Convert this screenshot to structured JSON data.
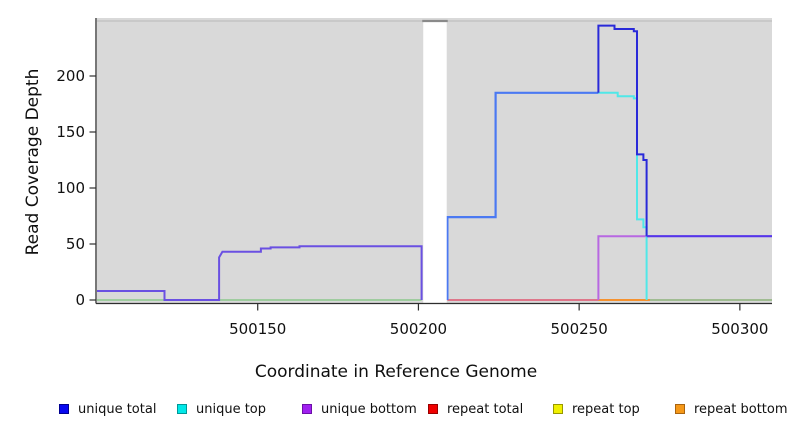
{
  "figure": {
    "background": "#FFFFFF",
    "plot_background": "#D9D9D9",
    "axis_color": "#2E2E2E",
    "tick_label_color": "#111111"
  },
  "chart_data": {
    "type": "line",
    "title": "",
    "xlabel": "Coordinate in Reference Genome",
    "ylabel": "Read Coverage Depth",
    "xlim": [
      500100,
      500310
    ],
    "ylim": [
      0,
      250
    ],
    "x_ticks": [
      500150,
      500200,
      500250,
      500300
    ],
    "y_ticks": [
      0,
      50,
      100,
      150,
      200
    ],
    "grid": false,
    "legend_position": "bottom",
    "masked_region": {
      "x_start": 500201.5,
      "x_end": 500208.8,
      "fill": "#FFFFFF",
      "cap_color": "#8A8A8A",
      "top_edge_color": "#C4C4C4"
    },
    "series": [
      {
        "name": "unique total",
        "color": "#0808F0",
        "points": [
          [
            500100,
            8
          ],
          [
            500121,
            0
          ],
          [
            500138,
            43
          ],
          [
            500151,
            46
          ],
          [
            500154,
            47
          ],
          [
            500163,
            48
          ],
          [
            500201,
            48
          ],
          [
            500209,
            74
          ],
          [
            500224,
            185
          ],
          [
            500256,
            245
          ],
          [
            500261,
            242
          ],
          [
            500268,
            130
          ],
          [
            500270,
            125
          ],
          [
            500271,
            57
          ],
          [
            500310,
            57
          ]
        ]
      },
      {
        "name": "unique top",
        "color": "#00E8E8",
        "points": [
          [
            500100,
            0
          ],
          [
            500224,
            185
          ],
          [
            500256,
            185
          ],
          [
            500262,
            182
          ],
          [
            500268,
            72
          ],
          [
            500270,
            65
          ],
          [
            500271,
            0
          ],
          [
            500310,
            0
          ]
        ]
      },
      {
        "name": "unique bottom",
        "color": "#A020F0",
        "points": [
          [
            500100,
            8
          ],
          [
            500121,
            0
          ],
          [
            500138,
            43
          ],
          [
            500163,
            48
          ],
          [
            500201,
            0
          ],
          [
            500256,
            57
          ],
          [
            500310,
            57
          ]
        ]
      },
      {
        "name": "repeat total",
        "color": "#F00000",
        "points": [
          [
            500100,
            0
          ],
          [
            500310,
            0
          ]
        ]
      },
      {
        "name": "repeat top",
        "color": "#F0F000",
        "points": [
          [
            500100,
            0
          ],
          [
            500310,
            0
          ]
        ]
      },
      {
        "name": "repeat bottom",
        "color": "#F59818",
        "points": [
          [
            500100,
            0
          ],
          [
            500310,
            0
          ]
        ]
      }
    ],
    "render_segments": [
      {
        "id": "zero-line-green-left",
        "color": "#8CC88C",
        "width": 1.6,
        "points": [
          [
            500100,
            0
          ],
          [
            500201,
            0
          ]
        ]
      },
      {
        "id": "zero-line-red-right",
        "color": "#E05570",
        "width": 1.6,
        "points": [
          [
            500209,
            0
          ],
          [
            500310,
            0
          ]
        ]
      },
      {
        "id": "zero-line-orange",
        "color": "#F5922F",
        "width": 2,
        "points": [
          [
            500256,
            0
          ],
          [
            500272,
            0
          ]
        ]
      },
      {
        "id": "zero-line-green-right",
        "color": "#8CC88C",
        "width": 1.6,
        "points": [
          [
            500272,
            0
          ],
          [
            500310,
            0
          ]
        ]
      },
      {
        "id": "unique-left-steps",
        "color": "#6A50E2",
        "width": 2,
        "points": [
          [
            500100,
            8
          ],
          [
            500121,
            8
          ],
          [
            500121,
            0
          ],
          [
            500138,
            0
          ],
          [
            500138,
            38
          ],
          [
            500139,
            43
          ],
          [
            500151,
            43
          ],
          [
            500151,
            46
          ],
          [
            500154,
            46
          ],
          [
            500154,
            47
          ],
          [
            500163,
            47
          ],
          [
            500163,
            48
          ],
          [
            500201,
            48
          ],
          [
            500201,
            0
          ]
        ]
      },
      {
        "id": "total-bright-blue",
        "color": "#4B79F2",
        "width": 2.2,
        "points": [
          [
            500209,
            0
          ],
          [
            500209,
            74
          ],
          [
            500224,
            74
          ],
          [
            500224,
            185
          ],
          [
            500256,
            185
          ]
        ]
      },
      {
        "id": "bottom-purple-57",
        "color": "#B868E2",
        "width": 2,
        "points": [
          [
            500256,
            0
          ],
          [
            500256,
            57
          ],
          [
            500272,
            57
          ]
        ]
      },
      {
        "id": "top-cyan",
        "color": "#50E8E8",
        "width": 2,
        "points": [
          [
            500256,
            185
          ],
          [
            500262,
            185
          ],
          [
            500262,
            182
          ],
          [
            500267,
            182
          ],
          [
            500267,
            180
          ],
          [
            500268,
            180
          ],
          [
            500268,
            72
          ],
          [
            500270,
            72
          ],
          [
            500270,
            65
          ],
          [
            500271,
            65
          ],
          [
            500271,
            0
          ]
        ]
      },
      {
        "id": "total-dark-blue",
        "color": "#2A2AD9",
        "width": 2,
        "points": [
          [
            500256,
            185
          ],
          [
            500256,
            245
          ],
          [
            500261,
            245
          ],
          [
            500261,
            242
          ],
          [
            500267,
            242
          ],
          [
            500267,
            240
          ],
          [
            500268,
            240
          ],
          [
            500268,
            130
          ],
          [
            500270,
            130
          ],
          [
            500270,
            125
          ],
          [
            500271,
            125
          ],
          [
            500271,
            57
          ]
        ]
      },
      {
        "id": "total-over-bottom-tail",
        "color": "#5635EA",
        "width": 2.2,
        "points": [
          [
            500271,
            57
          ],
          [
            500310,
            57
          ]
        ]
      }
    ]
  },
  "legend": {
    "item_x": [
      59,
      177,
      302,
      428,
      553,
      675
    ],
    "items": [
      {
        "label": "unique total",
        "fill": "#0808F0",
        "border": "#000090"
      },
      {
        "label": "unique top",
        "fill": "#00E8E8",
        "border": "#009898"
      },
      {
        "label": "unique bottom",
        "fill": "#A020F0",
        "border": "#6C10A8"
      },
      {
        "label": "repeat total",
        "fill": "#F00000",
        "border": "#980000"
      },
      {
        "label": "repeat top",
        "fill": "#F0F000",
        "border": "#989800"
      },
      {
        "label": "repeat bottom",
        "fill": "#F59818",
        "border": "#A86410"
      }
    ]
  }
}
